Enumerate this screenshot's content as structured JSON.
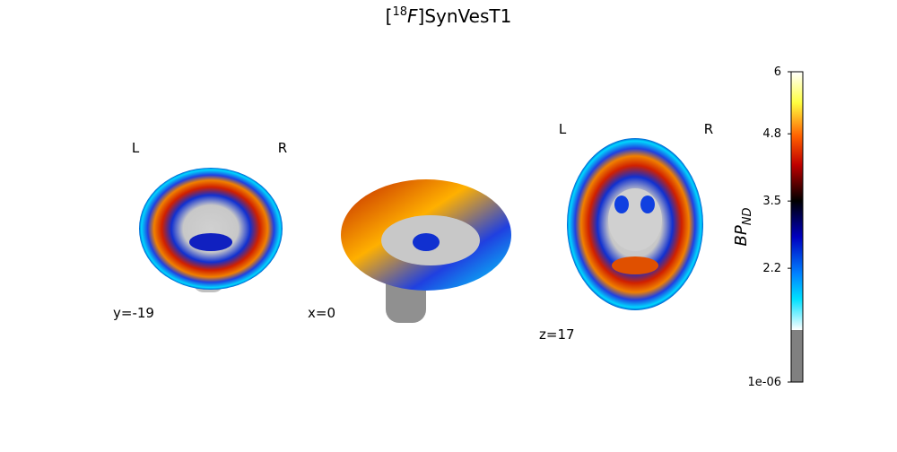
{
  "title": {
    "prefix": "[",
    "superscript": "18",
    "italic": "F",
    "suffix": "]SynVesT1"
  },
  "panels": [
    {
      "left": "L",
      "right": "R",
      "coordinate": "y=-19"
    },
    {
      "coordinate": "x=0"
    },
    {
      "left": "L",
      "right": "R",
      "coordinate": "z=17"
    }
  ],
  "colorbar": {
    "label": "BP",
    "subscript": "ND",
    "lim": [
      1e-06,
      6
    ],
    "ticks": [
      {
        "value": 1e-06,
        "label": "1e-06"
      },
      2.2,
      3.5,
      4.8,
      6
    ]
  }
}
